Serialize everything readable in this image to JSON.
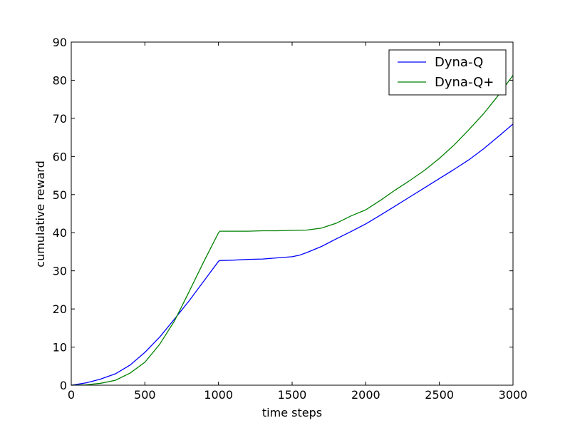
{
  "chart_data": {
    "type": "line",
    "xlabel": "time steps",
    "ylabel": "cumulative reward",
    "xlim": [
      0,
      3000
    ],
    "ylim": [
      0,
      90
    ],
    "xticks": [
      0,
      500,
      1000,
      1500,
      2000,
      2500,
      3000
    ],
    "yticks": [
      0,
      10,
      20,
      30,
      40,
      50,
      60,
      70,
      80,
      90
    ],
    "grid": false,
    "legend_position": "top-right",
    "series": [
      {
        "name": "Dyna-Q",
        "color": "#0000ff",
        "x": [
          0,
          100,
          200,
          300,
          400,
          500,
          600,
          700,
          800,
          900,
          1000,
          1010,
          1100,
          1200,
          1300,
          1400,
          1500,
          1550,
          1600,
          1700,
          1800,
          1900,
          2000,
          2100,
          2200,
          2300,
          2400,
          2500,
          2600,
          2700,
          2800,
          2900,
          3000
        ],
        "y": [
          0,
          0.6,
          1.6,
          3.0,
          5.3,
          8.6,
          12.6,
          17.3,
          22.1,
          27.3,
          32.5,
          32.7,
          32.8,
          33.0,
          33.1,
          33.4,
          33.7,
          34.1,
          34.8,
          36.4,
          38.4,
          40.3,
          42.3,
          44.6,
          47.0,
          49.4,
          51.8,
          54.2,
          56.6,
          59.1,
          62.0,
          65.2,
          68.5
        ]
      },
      {
        "name": "Dyna-Q+",
        "color": "#008000",
        "x": [
          0,
          100,
          200,
          300,
          400,
          500,
          600,
          700,
          800,
          900,
          1000,
          1010,
          1100,
          1200,
          1300,
          1400,
          1500,
          1600,
          1700,
          1800,
          1900,
          2000,
          2100,
          2200,
          2300,
          2400,
          2500,
          2600,
          2700,
          2800,
          2900,
          3000
        ],
        "y": [
          0,
          0.1,
          0.5,
          1.3,
          3.2,
          6.0,
          10.7,
          16.8,
          24.5,
          32.4,
          40.0,
          40.4,
          40.4,
          40.4,
          40.5,
          40.5,
          40.6,
          40.7,
          41.2,
          42.5,
          44.4,
          46.0,
          48.5,
          51.2,
          53.7,
          56.4,
          59.5,
          63.0,
          67.0,
          71.2,
          76.0,
          81.3
        ]
      }
    ]
  }
}
